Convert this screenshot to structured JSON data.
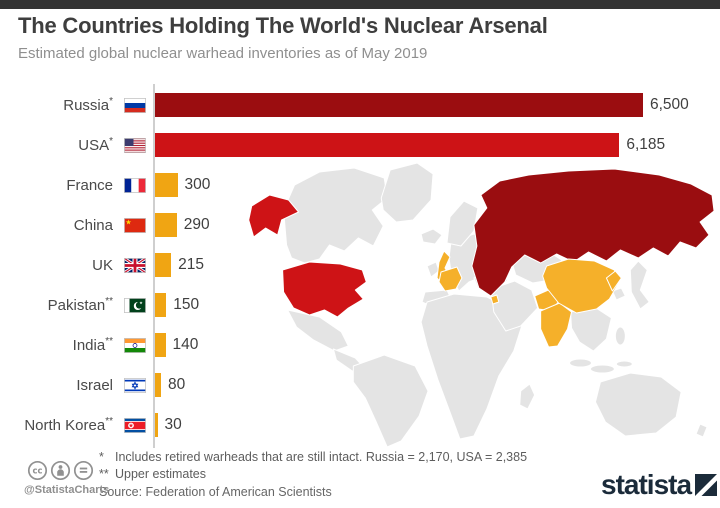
{
  "colors": {
    "topbar": "#343434",
    "axis": "#cfcfcf",
    "title": "#3e3e3e",
    "subtitle": "#8f8f8f"
  },
  "chart_data": {
    "type": "bar",
    "orientation": "horizontal",
    "title": "The Countries Holding The World's Nuclear Arsenal",
    "subtitle": "Estimated global nuclear warhead inventories as of May 2019",
    "xlim": [
      0,
      6700
    ],
    "grid": false,
    "legend": false,
    "rows": [
      {
        "label": "Russia",
        "marks": "*",
        "value": 6500,
        "value_label": "6,500",
        "bar_color": "#9b0d10",
        "flag": "russia-flag-icon"
      },
      {
        "label": "USA",
        "marks": "*",
        "value": 6185,
        "value_label": "6,185",
        "bar_color": "#cd1316",
        "flag": "usa-flag-icon"
      },
      {
        "label": "France",
        "marks": "",
        "value": 300,
        "value_label": "300",
        "bar_color": "#f0a513",
        "flag": "france-flag-icon"
      },
      {
        "label": "China",
        "marks": "",
        "value": 290,
        "value_label": "290",
        "bar_color": "#f0a513",
        "flag": "china-flag-icon"
      },
      {
        "label": "UK",
        "marks": "",
        "value": 215,
        "value_label": "215",
        "bar_color": "#f0a513",
        "flag": "uk-flag-icon"
      },
      {
        "label": "Pakistan",
        "marks": "**",
        "value": 150,
        "value_label": "150",
        "bar_color": "#f0a513",
        "flag": "pakistan-flag-icon"
      },
      {
        "label": "India",
        "marks": "**",
        "value": 140,
        "value_label": "140",
        "bar_color": "#f0a513",
        "flag": "india-flag-icon"
      },
      {
        "label": "Israel",
        "marks": "",
        "value": 80,
        "value_label": "80",
        "bar_color": "#f0a513",
        "flag": "israel-flag-icon"
      },
      {
        "label": "North Korea",
        "marks": "**",
        "value": 30,
        "value_label": "30",
        "bar_color": "#f0a513",
        "flag": "north-korea-flag-icon"
      }
    ],
    "footnotes": [
      {
        "mark": "*",
        "text": "Includes retired warheads that are still intact. Russia = 2,170, USA = 2,385"
      },
      {
        "mark": "**",
        "text": "Upper estimates"
      }
    ],
    "source": "Source: Federation of American Scientists"
  },
  "map": {
    "land_color": "#e4e4e4",
    "border_color": "#ffffff",
    "russia_color": "#9a0d10",
    "usa_color": "#ce1316",
    "highlight_color": "#f5b02a",
    "highlighted_countries": [
      "USA",
      "Russia",
      "UK",
      "France",
      "Israel",
      "Pakistan",
      "India",
      "China",
      "North Korea"
    ]
  },
  "branding": {
    "handle": "@StatistaCharts",
    "logo_text": "statista",
    "license_icons": [
      "cc-icon",
      "attribution-icon",
      "no-derivatives-icon"
    ]
  }
}
